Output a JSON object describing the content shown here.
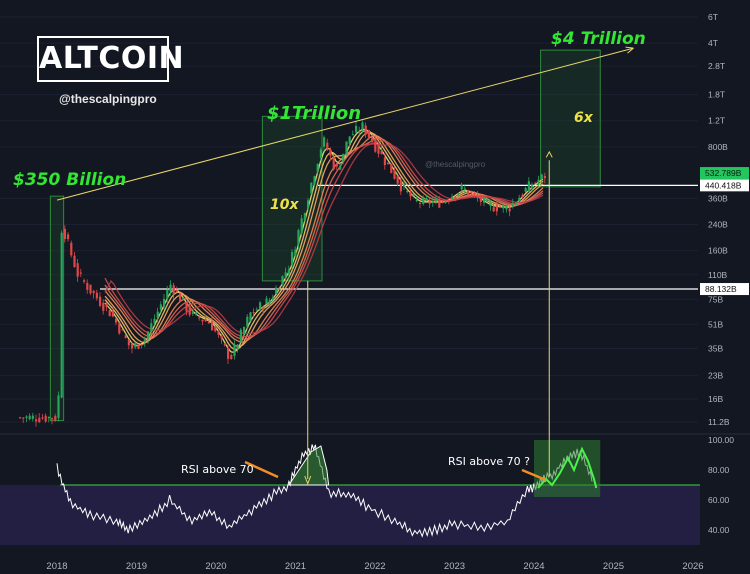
{
  "branding": {
    "title": "ALTCOIN",
    "handle": "@thescalpingpro",
    "watermark": "@thescalpingpro"
  },
  "annotations": {
    "cap_2018": "$350 Billion",
    "cap_2021": "$1Trillion",
    "cap_target": "$4 Trillion",
    "mult_2021": "10x",
    "mult_target": "6x",
    "rsi_2021": "RSI above 70",
    "rsi_2024": "RSI above 70 ?"
  },
  "colors": {
    "background": "#131722",
    "price_up": "#26a65b",
    "price_down": "#e04848",
    "annotation_green": "#33e633",
    "multiplier_yellow": "#f0e04a",
    "trendline": "#e8d66a",
    "rsi_line": "#ffffff",
    "rsi_band": "#2a2450",
    "rsi_threshold": "#3fd43f",
    "last_price_tag": "#22c55e"
  },
  "chart_data": [
    {
      "type": "line",
      "subtype": "candlestick with moving-average ribbon",
      "y_scale": "log",
      "y_unit": "market cap (USD)",
      "y_ticks": [
        "6T",
        "4T",
        "2.8T",
        "1.8T",
        "1.2T",
        "800B",
        "360B",
        "240B",
        "160B",
        "110B",
        "75B",
        "51B",
        "35B",
        "23B",
        "16B",
        "11.2B"
      ],
      "x_ticks": [
        "2018",
        "2019",
        "2020",
        "2021",
        "2022",
        "2023",
        "2024",
        "2025",
        "2026"
      ],
      "price_labels": {
        "last": "532.789B",
        "resistance": "440.418B",
        "support": "88.132B"
      },
      "levels": [
        440.418,
        88.132
      ],
      "approx_path": [
        {
          "x": "2018-01",
          "y": 12
        },
        {
          "x": "2018-01-20",
          "y": 350
        },
        {
          "x": "2018-02",
          "y": 210
        },
        {
          "x": "2018-03",
          "y": 150
        },
        {
          "x": "2018-04",
          "y": 110
        },
        {
          "x": "2018-06",
          "y": 85
        },
        {
          "x": "2018-09",
          "y": 60
        },
        {
          "x": "2018-12",
          "y": 35
        },
        {
          "x": "2019-02",
          "y": 40
        },
        {
          "x": "2019-06",
          "y": 95
        },
        {
          "x": "2019-09",
          "y": 60
        },
        {
          "x": "2019-12",
          "y": 52
        },
        {
          "x": "2020-03",
          "y": 30
        },
        {
          "x": "2020-06",
          "y": 60
        },
        {
          "x": "2020-09",
          "y": 75
        },
        {
          "x": "2020-12",
          "y": 130
        },
        {
          "x": "2021-03",
          "y": 420
        },
        {
          "x": "2021-05",
          "y": 900
        },
        {
          "x": "2021-07",
          "y": 550
        },
        {
          "x": "2021-09",
          "y": 950
        },
        {
          "x": "2021-11",
          "y": 1100
        },
        {
          "x": "2022-01",
          "y": 800
        },
        {
          "x": "2022-05",
          "y": 420
        },
        {
          "x": "2022-07",
          "y": 340
        },
        {
          "x": "2022-11",
          "y": 340
        },
        {
          "x": "2023-02",
          "y": 420
        },
        {
          "x": "2023-06",
          "y": 320
        },
        {
          "x": "2023-09",
          "y": 310
        },
        {
          "x": "2023-12",
          "y": 430
        },
        {
          "x": "2024-03",
          "y": 532.789
        }
      ],
      "trendline": {
        "from": {
          "x": "2018-01",
          "y": 350
        },
        "to": {
          "x": "2025-01",
          "y": 4000
        }
      },
      "boxes": [
        {
          "label": "$350 Billion",
          "x_range": [
            "2017-12",
            "2018-02"
          ]
        },
        {
          "label": "$1Trillion",
          "multiplier": "10x",
          "x_range": [
            "2020-08",
            "2021-05"
          ]
        },
        {
          "label": "$4 Trillion",
          "multiplier": "6x",
          "x_range": [
            "2024-02",
            "2024-11"
          ]
        }
      ]
    },
    {
      "type": "line",
      "subtype": "RSI",
      "y_ticks": [
        "100.00",
        "80.00",
        "60.00",
        "40.00"
      ],
      "threshold": 70,
      "band": [
        30,
        70
      ],
      "values": [
        {
          "x": "2018-01",
          "y": 82
        },
        {
          "x": "2018-03",
          "y": 58
        },
        {
          "x": "2018-06",
          "y": 50
        },
        {
          "x": "2018-10",
          "y": 45
        },
        {
          "x": "2018-12",
          "y": 40
        },
        {
          "x": "2019-03",
          "y": 48
        },
        {
          "x": "2019-06",
          "y": 60
        },
        {
          "x": "2019-09",
          "y": 46
        },
        {
          "x": "2019-12",
          "y": 52
        },
        {
          "x": "2020-03",
          "y": 42
        },
        {
          "x": "2020-06",
          "y": 52
        },
        {
          "x": "2020-09",
          "y": 62
        },
        {
          "x": "2020-12",
          "y": 70
        },
        {
          "x": "2021-02",
          "y": 90
        },
        {
          "x": "2021-04",
          "y": 95
        },
        {
          "x": "2021-06",
          "y": 65
        },
        {
          "x": "2021-09",
          "y": 64
        },
        {
          "x": "2021-12",
          "y": 55
        },
        {
          "x": "2022-04",
          "y": 46
        },
        {
          "x": "2022-07",
          "y": 38
        },
        {
          "x": "2022-10",
          "y": 40
        },
        {
          "x": "2023-01",
          "y": 44
        },
        {
          "x": "2023-05",
          "y": 42
        },
        {
          "x": "2023-09",
          "y": 46
        },
        {
          "x": "2023-12",
          "y": 66
        },
        {
          "x": "2024-02",
          "y": 72
        },
        {
          "x": "2024-04",
          "y": 78
        },
        {
          "x": "2024-06",
          "y": 88
        },
        {
          "x": "2024-08",
          "y": 92
        },
        {
          "x": "2024-10",
          "y": 72
        }
      ],
      "projection_box": {
        "x_range": [
          "2024-01",
          "2024-11"
        ],
        "y_range": [
          62,
          100
        ]
      }
    }
  ]
}
